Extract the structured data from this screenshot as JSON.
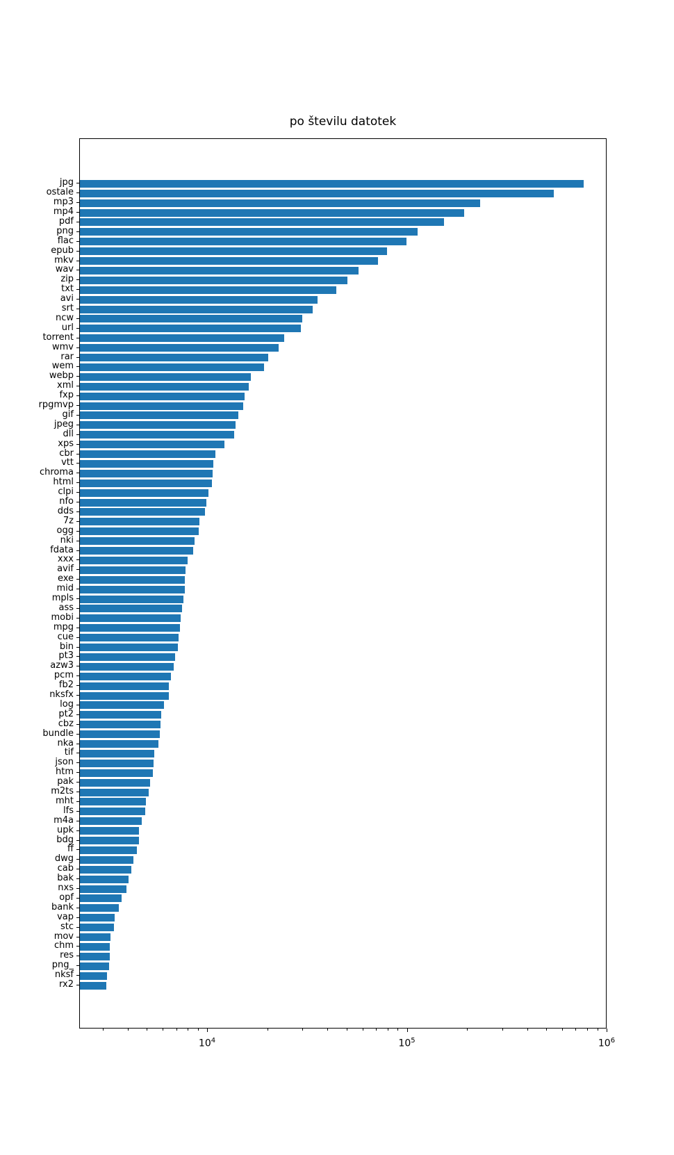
{
  "chart_data": {
    "type": "bar",
    "orientation": "horizontal",
    "title": "po številu datotek",
    "xlabel": "",
    "ylabel": "",
    "xscale": "log",
    "xlim": [
      2290,
      1000000
    ],
    "grid": false,
    "legend": "none",
    "bar_color": "#1f77b4",
    "x_major_ticks": [
      10000,
      100000,
      1000000
    ],
    "x_tick_labels": [
      "10^4",
      "10^5",
      "10^6"
    ],
    "x_minor_ticks": [
      3000,
      4000,
      5000,
      6000,
      7000,
      8000,
      9000,
      20000,
      30000,
      40000,
      50000,
      60000,
      70000,
      80000,
      90000,
      200000,
      300000,
      400000,
      500000,
      600000,
      700000,
      800000,
      900000
    ],
    "categories": [
      "jpg",
      "ostale",
      "mp3",
      "mp4",
      "pdf",
      "png",
      "flac",
      "epub",
      "mkv",
      "wav",
      "zip",
      "txt",
      "avi",
      "srt",
      "ncw",
      "url",
      "torrent",
      "wmv",
      "rar",
      "wem",
      "webp",
      "xml",
      "fxp",
      "rpgmvp",
      "gif",
      "jpeg",
      "dll",
      "xps",
      "cbr",
      "vtt",
      "chroma",
      "html",
      "clpi",
      "nfo",
      "dds",
      "7z",
      "ogg",
      "nki",
      "fdata",
      "xxx",
      "avif",
      "exe",
      "mid",
      "mpls",
      "ass",
      "mobi",
      "mpg",
      "cue",
      "bin",
      "pt3",
      "azw3",
      "pcm",
      "fb2",
      "nksfx",
      "log",
      "pt2",
      "cbz",
      "bundle",
      "nka",
      "tif",
      "json",
      "htm",
      "pak",
      "m2ts",
      "mht",
      "lfs",
      "m4a",
      "upk",
      "bdg",
      "ff",
      "dwg",
      "cab",
      "bak",
      "nxs",
      "opf",
      "bank",
      "vap",
      "stc",
      "mov",
      "chm",
      "res",
      "png_",
      "nksf",
      "rx2"
    ],
    "values": [
      760000,
      540000,
      231000,
      192000,
      152000,
      112000,
      99000,
      79000,
      71000,
      57000,
      50000,
      44000,
      35300,
      33600,
      29600,
      29200,
      24100,
      22700,
      20000,
      19200,
      16400,
      16000,
      15300,
      15100,
      14200,
      13800,
      13500,
      12100,
      10900,
      10700,
      10550,
      10450,
      10100,
      9800,
      9700,
      9100,
      9000,
      8570,
      8430,
      7900,
      7720,
      7700,
      7660,
      7550,
      7450,
      7300,
      7240,
      7120,
      7090,
      6880,
      6740,
      6560,
      6390,
      6380,
      6050,
      5860,
      5820,
      5770,
      5680,
      5400,
      5370,
      5320,
      5150,
      5070,
      4900,
      4850,
      4660,
      4540,
      4530,
      4430,
      4250,
      4150,
      4000,
      3920,
      3710,
      3590,
      3430,
      3400,
      3270,
      3230,
      3220,
      3210,
      3130,
      3110
    ]
  }
}
